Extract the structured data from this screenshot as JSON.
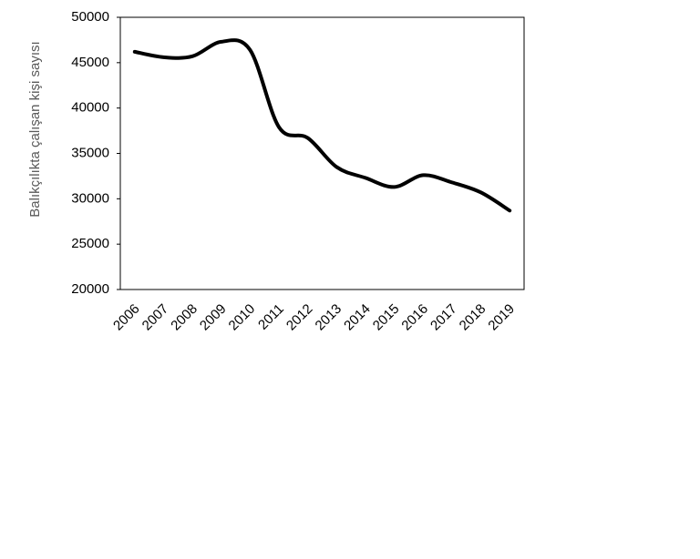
{
  "chart_data": {
    "type": "line",
    "y_label": "Balıkçılıkta  çalışan kişi sayısı",
    "categories": [
      "2006",
      "2007",
      "2008",
      "2009",
      "2010",
      "2011",
      "2012",
      "2013",
      "2014",
      "2015",
      "2016",
      "2017",
      "2018",
      "2019"
    ],
    "series": [
      {
        "name": "Balıkçılıkta çalışan kişi sayısı",
        "color": "#000000",
        "values": [
          46200,
          45600,
          45700,
          47300,
          46400,
          37900,
          36700,
          33500,
          32300,
          31300,
          32600,
          31800,
          30700,
          28700
        ]
      }
    ],
    "ylim": [
      20000,
      50000
    ],
    "yticks": [
      20000,
      25000,
      30000,
      35000,
      40000,
      45000,
      50000
    ],
    "smooth": true
  }
}
